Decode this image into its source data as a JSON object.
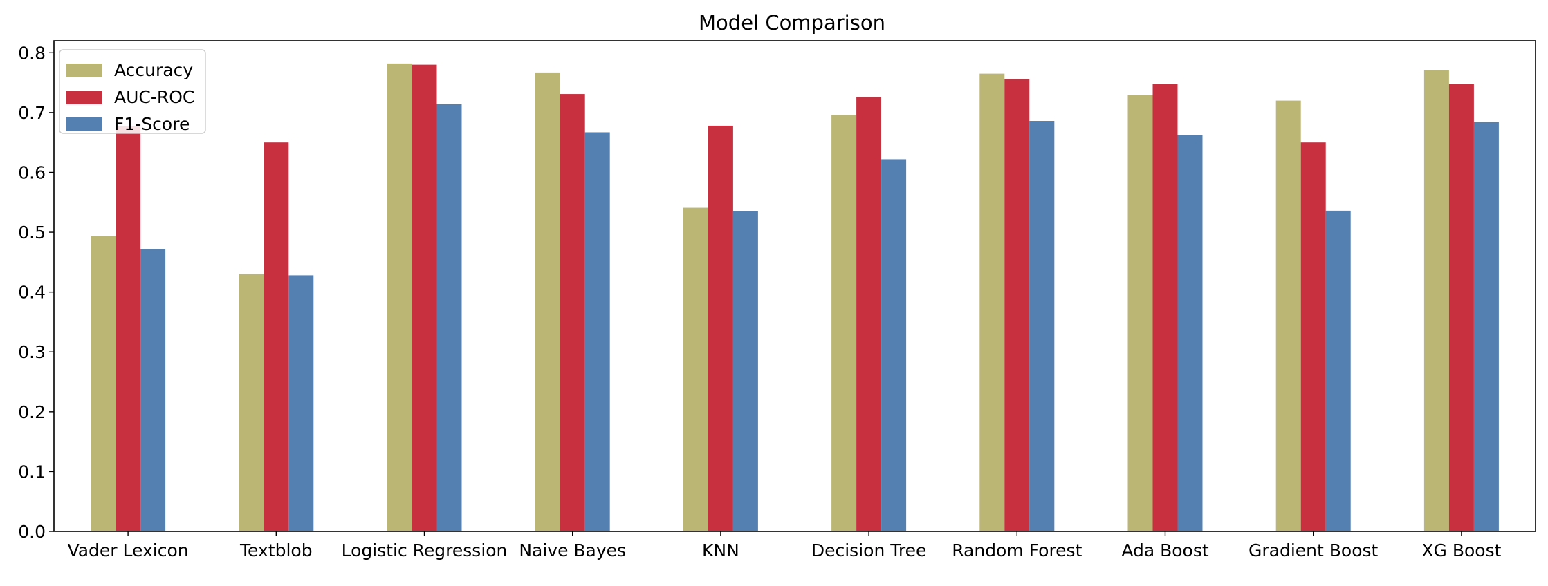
{
  "chart_data": {
    "type": "bar",
    "title": "Model Comparison",
    "xlabel": "",
    "ylabel": "",
    "ylim": [
      0,
      0.82
    ],
    "yticks": [
      "0.0",
      "0.1",
      "0.2",
      "0.3",
      "0.4",
      "0.5",
      "0.6",
      "0.7",
      "0.8"
    ],
    "grid": false,
    "legend_position": "top-left",
    "categories": [
      "Vader Lexicon",
      "Textblob",
      "Logistic Regression",
      "Naive Bayes",
      "KNN",
      "Decision Tree",
      "Random Forest",
      "Ada Boost",
      "Gradient Boost",
      "XG Boost"
    ],
    "series": [
      {
        "name": "Accuracy",
        "color": "#bcb674",
        "values": [
          0.494,
          0.43,
          0.782,
          0.767,
          0.541,
          0.696,
          0.765,
          0.729,
          0.72,
          0.771
        ]
      },
      {
        "name": "AUC-ROC",
        "color": "#c82f3f",
        "values": [
          0.677,
          0.65,
          0.78,
          0.731,
          0.678,
          0.726,
          0.756,
          0.748,
          0.65,
          0.748
        ]
      },
      {
        "name": "F1-Score",
        "color": "#5380b0",
        "values": [
          0.472,
          0.428,
          0.714,
          0.667,
          0.535,
          0.622,
          0.686,
          0.662,
          0.536,
          0.684
        ]
      }
    ]
  }
}
